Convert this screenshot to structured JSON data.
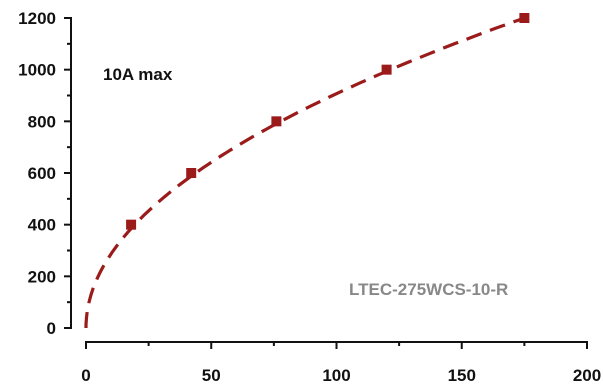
{
  "chart_data": {
    "type": "line",
    "title": "",
    "xlabel": "",
    "ylabel": "",
    "xlim": [
      0,
      200
    ],
    "ylim": [
      0,
      1200
    ],
    "xticks": [
      0,
      50,
      100,
      150,
      200
    ],
    "yticks": [
      0,
      200,
      400,
      600,
      800,
      1000,
      1200
    ],
    "grid": false,
    "annotations": {
      "note": "10A max",
      "model": "LTEC-275WCS-10-R"
    },
    "series": [
      {
        "color": "#9b1b1b",
        "style": "dashed",
        "marker": "square",
        "x": [
          18,
          42,
          76,
          120,
          175
        ],
        "y": [
          400,
          600,
          800,
          1000,
          1200
        ]
      }
    ]
  }
}
